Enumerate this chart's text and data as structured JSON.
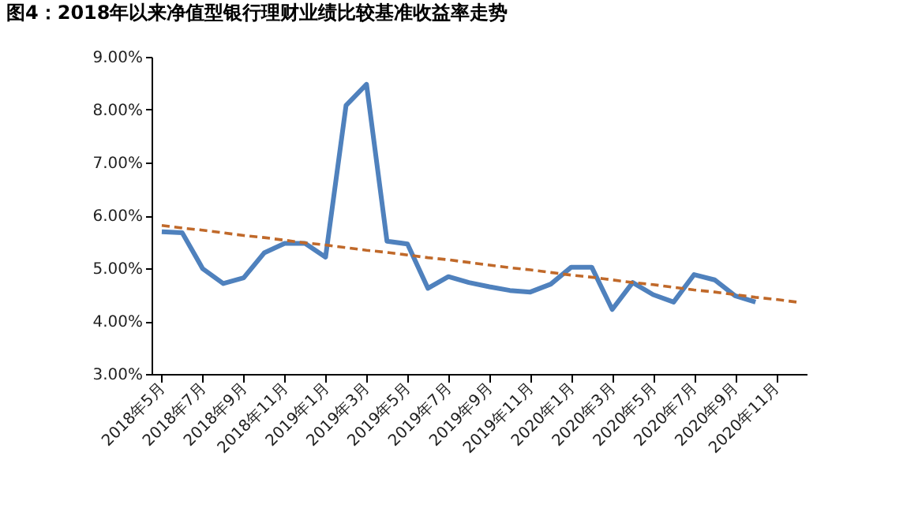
{
  "chart_data": {
    "type": "line",
    "title": "图4：2018年以来净值型银行理财业绩比较基准收益率走势",
    "categories": [
      "2018年5月",
      null,
      "2018年7月",
      null,
      "2018年9月",
      null,
      "2018年11月",
      null,
      "2019年1月",
      null,
      "2019年3月",
      null,
      "2019年5月",
      null,
      "2019年7月",
      null,
      "2019年9月",
      null,
      "2019年11月",
      null,
      "2020年1月",
      null,
      "2020年3月",
      null,
      "2020年5月",
      null,
      "2020年7月",
      null,
      "2020年9月",
      null,
      "2020年11月",
      null
    ],
    "series": [
      {
        "color": "#4f81bd",
        "line_style": "solid",
        "values": [
          5.69,
          5.67,
          4.99,
          4.71,
          4.82,
          5.29,
          5.47,
          5.47,
          5.21,
          8.08,
          8.48,
          5.51,
          5.46,
          4.62,
          4.84,
          4.73,
          4.65,
          4.58,
          4.55,
          4.7,
          5.02,
          5.02,
          4.22,
          4.73,
          4.5,
          4.36,
          4.88,
          4.78,
          4.48,
          4.36,
          null,
          null
        ]
      },
      {
        "type": "line",
        "color": "#c0692a",
        "line_style": "dashed",
        "values": [
          5.81,
          5.76,
          5.72,
          5.67,
          5.62,
          5.58,
          5.53,
          5.48,
          5.44,
          5.39,
          5.34,
          5.3,
          5.25,
          5.2,
          5.16,
          5.11,
          5.06,
          5.01,
          4.97,
          4.92,
          4.87,
          4.83,
          4.78,
          4.73,
          4.69,
          4.64,
          4.59,
          4.55,
          4.5,
          4.45,
          4.41,
          4.36
        ]
      }
    ],
    "ylim": [
      3,
      9
    ],
    "yticks": [
      {
        "value": 3,
        "label": "3.00%"
      },
      {
        "value": 4,
        "label": "4.00%"
      },
      {
        "value": 5,
        "label": "5.00%"
      },
      {
        "value": 6,
        "label": "6.00%"
      },
      {
        "value": 7,
        "label": "7.00%"
      },
      {
        "value": 8,
        "label": "8.00%"
      },
      {
        "value": 9,
        "label": "9.00%"
      }
    ],
    "grid": false,
    "marker": "none"
  }
}
